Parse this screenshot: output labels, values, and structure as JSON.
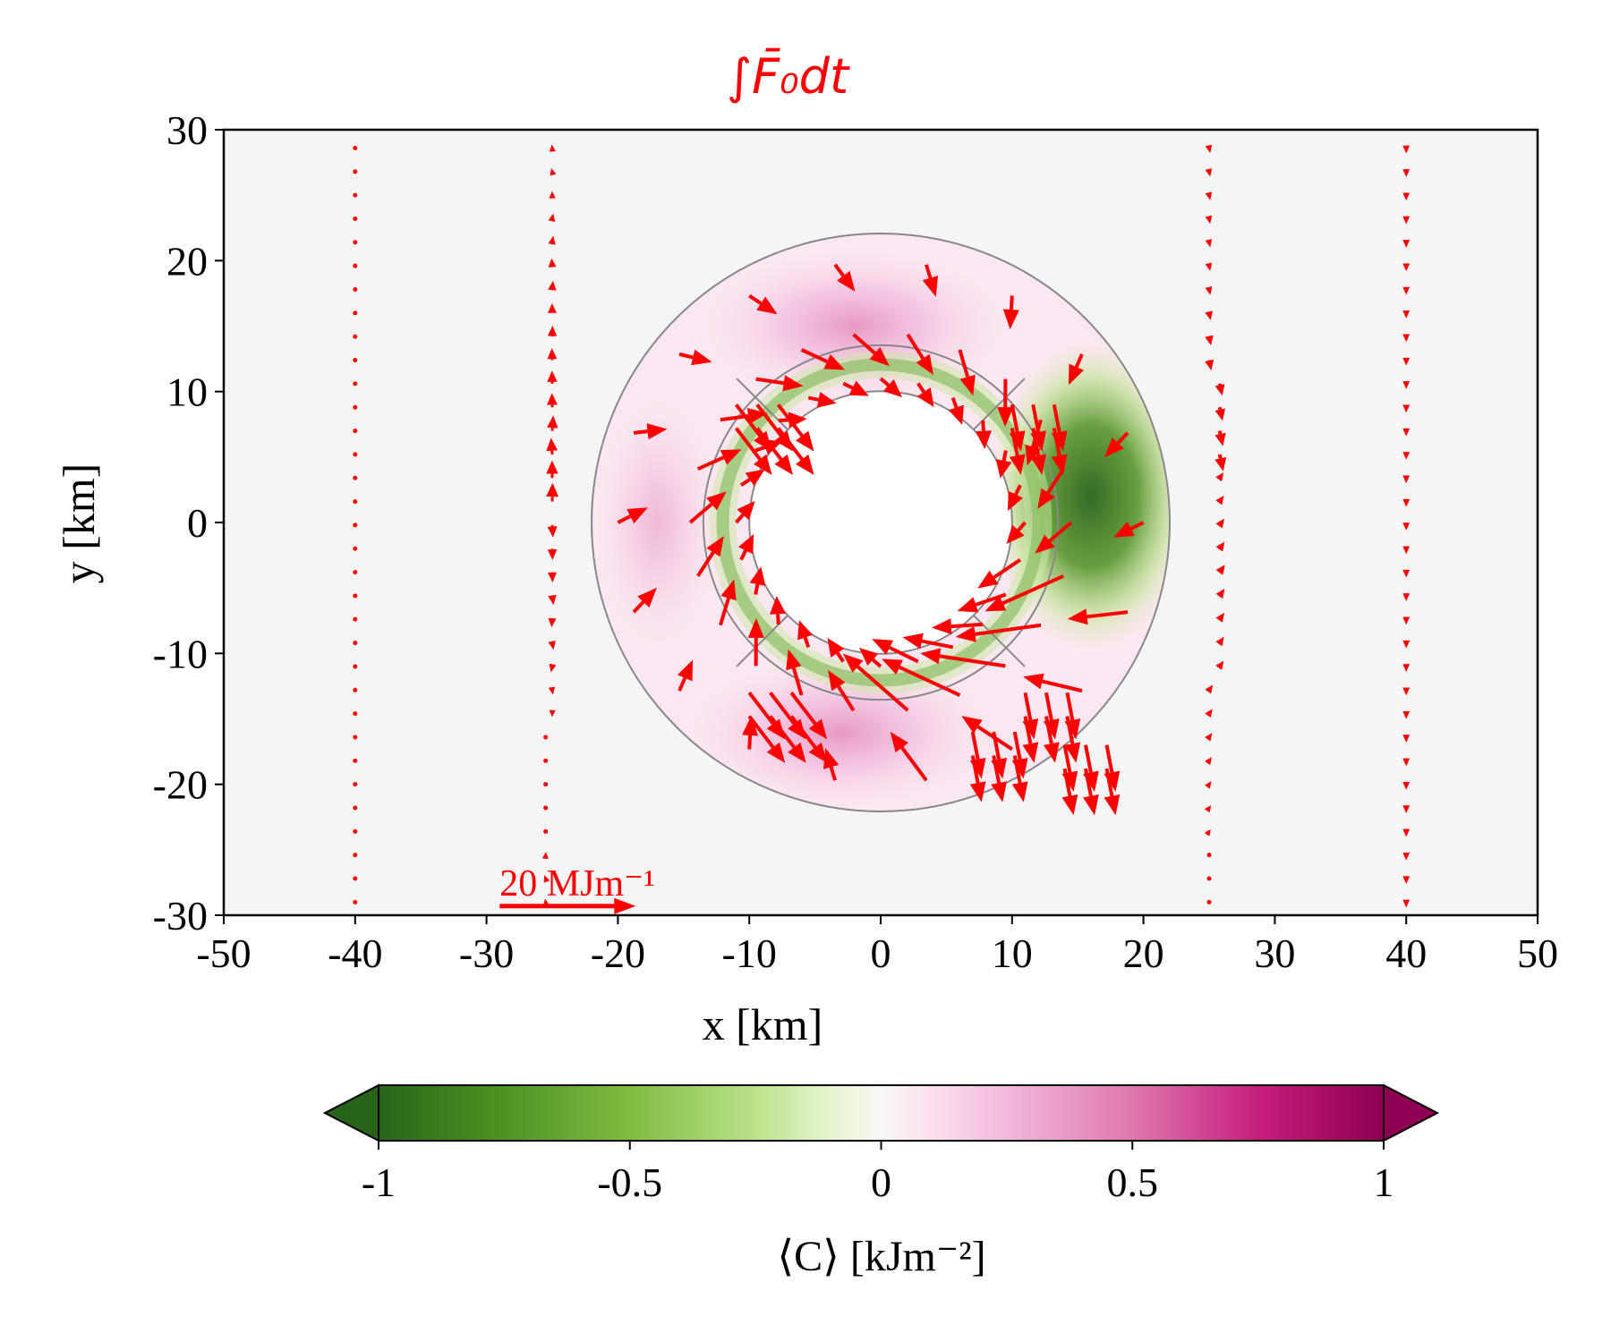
{
  "chart_data": {
    "type": "quiver+heatmap",
    "title": "∫F̄₀dt",
    "xlabel": "x [km]",
    "ylabel": "y [km]",
    "xlim": [
      -50,
      50
    ],
    "ylim": [
      -30,
      30
    ],
    "xticks": [
      "-50",
      "-40",
      "-30",
      "-20",
      "-10",
      "0",
      "10",
      "20",
      "30",
      "40",
      "50"
    ],
    "yticks": [
      "30",
      "20",
      "10",
      "0",
      "-10",
      "-20",
      "-30"
    ],
    "xtick_values": [
      -50,
      -40,
      -30,
      -20,
      -10,
      0,
      10,
      20,
      30,
      40,
      50
    ],
    "ytick_values": [
      30,
      20,
      10,
      0,
      -10,
      -20,
      -30
    ],
    "colorbar": {
      "label": "⟨C⟩ [kJm⁻²]",
      "ticks": [
        "-1",
        "-0.5",
        "0",
        "0.5",
        "1"
      ],
      "tick_values": [
        -1,
        -0.5,
        0,
        0.5,
        1
      ],
      "range": [
        -1,
        1
      ],
      "colormap": "PiYG (green negative, magenta positive)",
      "extend": "both"
    },
    "rings_km": [
      10,
      13.5,
      22
    ],
    "quiver_key": {
      "label": "20 MJm⁻¹",
      "magnitude": 20
    },
    "quiver_lines_x": [
      -40,
      -25,
      25,
      40
    ],
    "colors": {
      "arrows": "#ff0000",
      "background": "#f5f5f5",
      "positive": "#8e0152",
      "negative": "#276419"
    }
  }
}
